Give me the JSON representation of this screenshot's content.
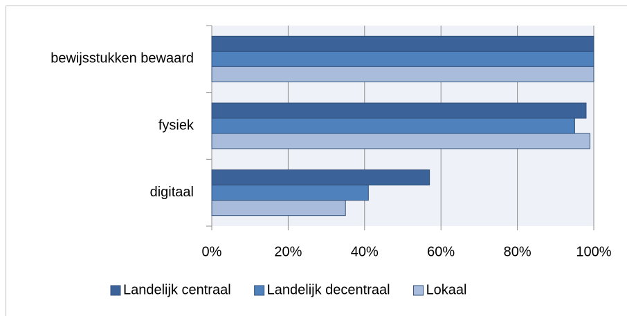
{
  "chart_data": {
    "type": "bar",
    "orientation": "horizontal",
    "categories": [
      "bewijsstukken bewaard",
      "fysiek",
      "digitaal"
    ],
    "series": [
      {
        "name": "Landelijk centraal",
        "color": "#3c6399",
        "values": [
          100,
          98,
          57
        ]
      },
      {
        "name": "Landelijk decentraal",
        "color": "#4f81bd",
        "values": [
          100,
          95,
          41
        ]
      },
      {
        "name": "Lokaal",
        "color": "#a9bcdc",
        "values": [
          100,
          99,
          35
        ]
      }
    ],
    "xlim": [
      0,
      100
    ],
    "xticks": [
      {
        "value": 0,
        "label": "0%"
      },
      {
        "value": 20,
        "label": "20%"
      },
      {
        "value": 40,
        "label": "40%"
      },
      {
        "value": 60,
        "label": "60%"
      },
      {
        "value": 80,
        "label": "80%"
      },
      {
        "value": 100,
        "label": "100%"
      }
    ],
    "grid": true,
    "legend": "bottom"
  }
}
